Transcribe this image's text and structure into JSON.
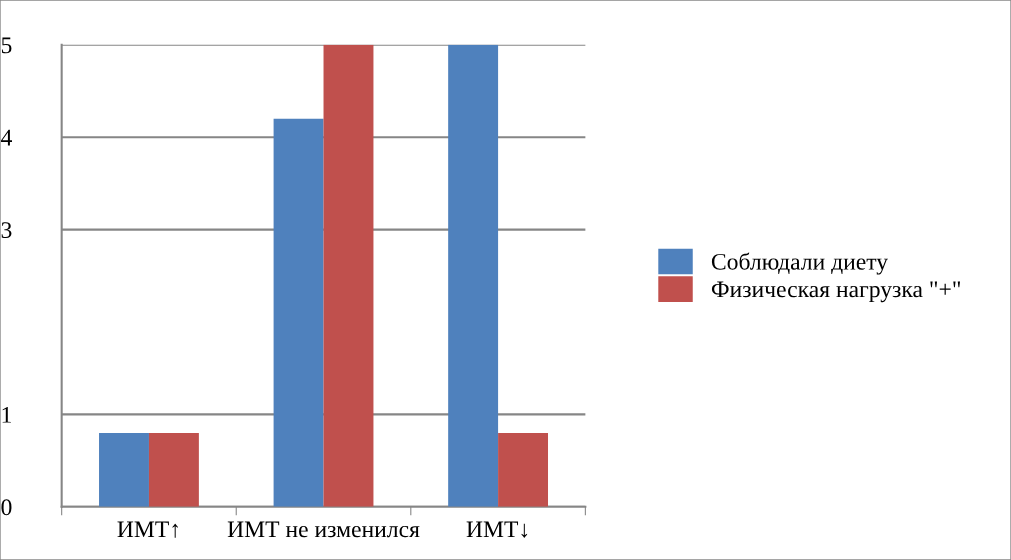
{
  "chart_data": {
    "type": "bar",
    "categories": [
      "ИМТ↑",
      "ИМТ не изменился",
      "ИМТ↓"
    ],
    "series": [
      {
        "name": "Соблюдали диету",
        "color": "#4f81bd",
        "values": [
          0.8,
          4.2,
          5
        ]
      },
      {
        "name": "Физическая нагрузка \"+\"",
        "color": "#c0504d",
        "values": [
          0.8,
          5,
          0.8
        ]
      }
    ],
    "ylim": [
      0,
      5
    ],
    "yticks": [
      0,
      1,
      3,
      4,
      5
    ],
    "grid": "y",
    "legend": "right"
  }
}
